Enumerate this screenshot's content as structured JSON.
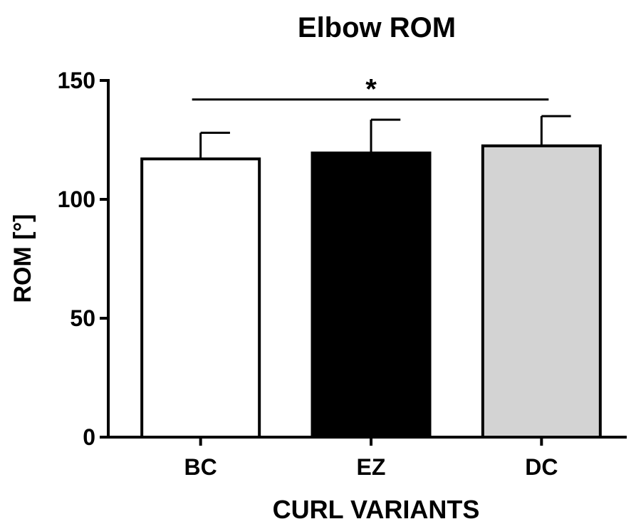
{
  "chart_data": {
    "type": "bar",
    "title": "Elbow ROM",
    "xlabel": "CURL VARIANTS",
    "ylabel": "ROM [°]",
    "categories": [
      "BC",
      "EZ",
      "DC"
    ],
    "values": [
      117,
      119.5,
      122.5
    ],
    "error_plus": [
      11,
      14,
      12.5
    ],
    "bar_colors": [
      "#ffffff",
      "#000000",
      "#d3d3d3"
    ],
    "ylim": [
      0,
      150
    ],
    "yticks": [
      0,
      50,
      100,
      150
    ],
    "significance": {
      "from": "BC",
      "to": "DC",
      "label": "*",
      "y": 145
    },
    "grid": false,
    "legend": "none"
  }
}
